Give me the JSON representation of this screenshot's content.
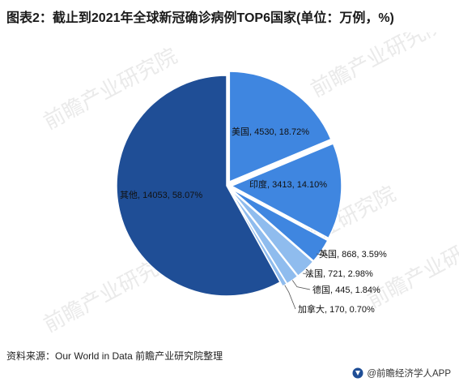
{
  "title": "图表2：截止到2021年全球新冠确诊病例TOP6国家(单位：万例，%)",
  "source": "资料来源：Our World in Data 前瞻产业研究院整理",
  "brand": "@前瞻经济学人APP",
  "watermark": "前瞻产业研究院",
  "colors": {
    "dark": "#1f4e96",
    "medium": "#3f86e0",
    "light": "#8fbcee"
  },
  "chart_data": {
    "type": "pie",
    "title": "图表2：截止到2021年全球新冠确诊病例TOP6国家(单位：万例，%)",
    "slices": [
      {
        "name": "美国",
        "value": 4530,
        "percent": 18.72,
        "label": "美国, 4530, 18.72%"
      },
      {
        "name": "印度",
        "value": 3413,
        "percent": 14.1,
        "label": "印度, 3413, 14.10%"
      },
      {
        "name": "英国",
        "value": 868,
        "percent": 3.59,
        "label": "英国, 868, 3.59%"
      },
      {
        "name": "法国",
        "value": 721,
        "percent": 2.98,
        "label": "法国, 721, 2.98%"
      },
      {
        "name": "德国",
        "value": 445,
        "percent": 1.84,
        "label": "德国, 445, 1.84%"
      },
      {
        "name": "加拿大",
        "value": 170,
        "percent": 0.7,
        "label": "加拿大, 170, 0.70%"
      },
      {
        "name": "其他",
        "value": 14053,
        "percent": 58.07,
        "label": "其他, 14053, 58.07%"
      }
    ],
    "start_angle": "12 o'clock",
    "direction": "clockwise",
    "legend": "none"
  }
}
